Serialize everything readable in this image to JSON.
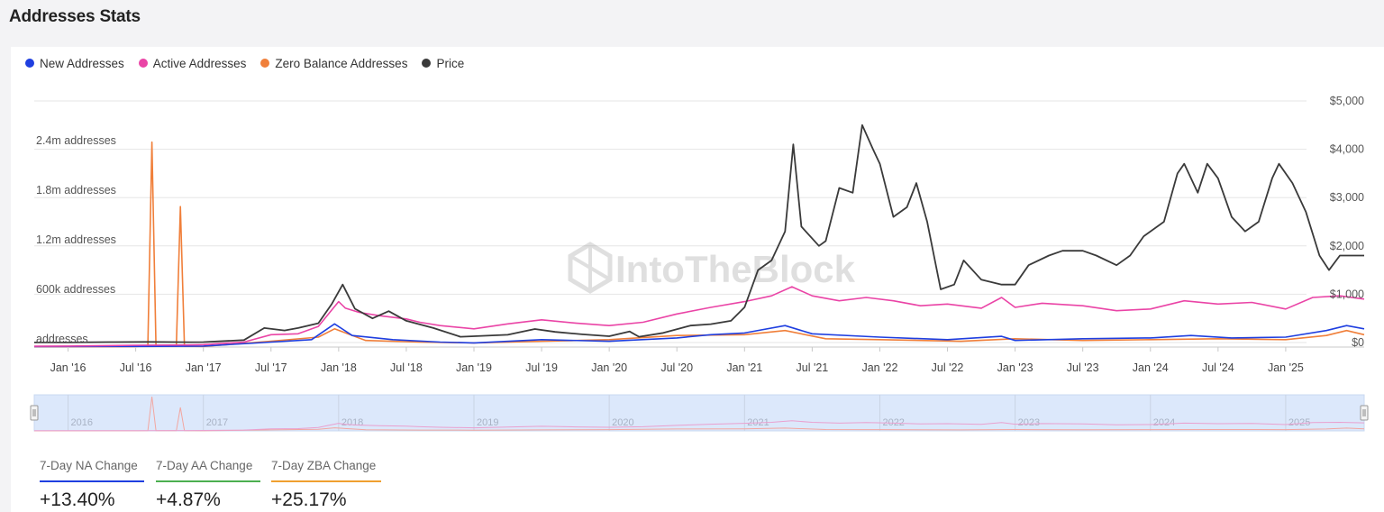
{
  "title": "Addresses Stats",
  "legend": [
    {
      "label": "New Addresses",
      "color": "#1f3fe0"
    },
    {
      "label": "Active Addresses",
      "color": "#ea44a6"
    },
    {
      "label": "Zero Balance Addresses",
      "color": "#f07f3a"
    },
    {
      "label": "Price",
      "color": "#3a3a3a"
    }
  ],
  "watermark": "IntoTheBlock",
  "kpis": [
    {
      "label": "7-Day NA Change",
      "value": "+13.40%",
      "color": "#1f3fe0"
    },
    {
      "label": "7-Day AA Change",
      "value": "+4.87%",
      "color": "#4caf50"
    },
    {
      "label": "7-Day ZBA Change",
      "value": "+25.17%",
      "color": "#f0a030"
    }
  ],
  "chart_data": {
    "type": "line",
    "x_ticks": [
      "Jan '16",
      "Jul '16",
      "Jan '17",
      "Jul '17",
      "Jan '18",
      "Jul '18",
      "Jan '19",
      "Jul '19",
      "Jan '20",
      "Jul '20",
      "Jan '21",
      "Jul '21",
      "Jan '22",
      "Jul '22",
      "Jan '23",
      "Jul '23",
      "Jan '24",
      "Jul '24",
      "Jan '25"
    ],
    "y_left": {
      "ticks": [
        "addresses",
        "600k addresses",
        "1.2m addresses",
        "1.8m addresses",
        "2.4m addresses"
      ],
      "tick_values": [
        0,
        600000,
        1200000,
        1800000,
        2400000
      ]
    },
    "y_right": {
      "ticks": [
        "$0",
        "$1,000",
        "$2,000",
        "$3,000",
        "$4,000",
        "$5,000"
      ],
      "tick_values": [
        0,
        1000,
        2000,
        3000,
        4000,
        5000
      ]
    },
    "x_range": [
      2015.75,
      2025.58
    ],
    "navigator_years": [
      "2016",
      "2017",
      "2018",
      "2019",
      "2020",
      "2021",
      "2022",
      "2023",
      "2024",
      "2025"
    ],
    "series": [
      {
        "name": "Active Addresses",
        "axis": "left",
        "color": "#ea44a6",
        "points": [
          [
            2015.75,
            10000
          ],
          [
            2016.0,
            12000
          ],
          [
            2016.5,
            22000
          ],
          [
            2016.9,
            25000
          ],
          [
            2017.0,
            30000
          ],
          [
            2017.3,
            60000
          ],
          [
            2017.5,
            150000
          ],
          [
            2017.7,
            160000
          ],
          [
            2017.85,
            250000
          ],
          [
            2017.95,
            450000
          ],
          [
            2018.0,
            550000
          ],
          [
            2018.05,
            470000
          ],
          [
            2018.15,
            420000
          ],
          [
            2018.3,
            380000
          ],
          [
            2018.5,
            340000
          ],
          [
            2018.6,
            300000
          ],
          [
            2018.75,
            260000
          ],
          [
            2019.0,
            220000
          ],
          [
            2019.25,
            280000
          ],
          [
            2019.5,
            330000
          ],
          [
            2019.75,
            290000
          ],
          [
            2020.0,
            260000
          ],
          [
            2020.25,
            300000
          ],
          [
            2020.5,
            400000
          ],
          [
            2020.75,
            480000
          ],
          [
            2021.0,
            550000
          ],
          [
            2021.2,
            620000
          ],
          [
            2021.35,
            730000
          ],
          [
            2021.5,
            620000
          ],
          [
            2021.7,
            560000
          ],
          [
            2021.9,
            600000
          ],
          [
            2022.1,
            560000
          ],
          [
            2022.3,
            500000
          ],
          [
            2022.5,
            520000
          ],
          [
            2022.75,
            470000
          ],
          [
            2022.9,
            600000
          ],
          [
            2023.0,
            480000
          ],
          [
            2023.2,
            530000
          ],
          [
            2023.5,
            500000
          ],
          [
            2023.75,
            440000
          ],
          [
            2024.0,
            460000
          ],
          [
            2024.25,
            560000
          ],
          [
            2024.5,
            520000
          ],
          [
            2024.75,
            540000
          ],
          [
            2025.0,
            460000
          ],
          [
            2025.2,
            600000
          ],
          [
            2025.4,
            620000
          ],
          [
            2025.58,
            580000
          ]
        ]
      },
      {
        "name": "New Addresses",
        "axis": "left",
        "color": "#1f3fe0",
        "points": [
          [
            2015.75,
            5000
          ],
          [
            2016.5,
            8000
          ],
          [
            2017.0,
            12000
          ],
          [
            2017.5,
            60000
          ],
          [
            2017.8,
            90000
          ],
          [
            2017.97,
            280000
          ],
          [
            2018.1,
            140000
          ],
          [
            2018.4,
            90000
          ],
          [
            2018.75,
            60000
          ],
          [
            2019.0,
            50000
          ],
          [
            2019.5,
            90000
          ],
          [
            2020.0,
            70000
          ],
          [
            2020.5,
            110000
          ],
          [
            2020.75,
            150000
          ],
          [
            2021.0,
            170000
          ],
          [
            2021.3,
            260000
          ],
          [
            2021.5,
            160000
          ],
          [
            2022.0,
            120000
          ],
          [
            2022.5,
            90000
          ],
          [
            2022.9,
            130000
          ],
          [
            2023.0,
            80000
          ],
          [
            2023.5,
            100000
          ],
          [
            2024.0,
            110000
          ],
          [
            2024.3,
            140000
          ],
          [
            2024.6,
            110000
          ],
          [
            2025.0,
            120000
          ],
          [
            2025.3,
            200000
          ],
          [
            2025.45,
            260000
          ],
          [
            2025.58,
            220000
          ]
        ]
      },
      {
        "name": "Zero Balance Addresses",
        "axis": "left",
        "color": "#f07f3a",
        "points": [
          [
            2015.75,
            3000
          ],
          [
            2016.5,
            5000
          ],
          [
            2016.59,
            15000
          ],
          [
            2016.62,
            2480000
          ],
          [
            2016.65,
            15000
          ],
          [
            2016.8,
            10000
          ],
          [
            2016.83,
            1700000
          ],
          [
            2016.86,
            10000
          ],
          [
            2017.0,
            8000
          ],
          [
            2017.5,
            70000
          ],
          [
            2017.85,
            120000
          ],
          [
            2017.97,
            220000
          ],
          [
            2018.2,
            80000
          ],
          [
            2018.6,
            60000
          ],
          [
            2019.0,
            50000
          ],
          [
            2019.5,
            70000
          ],
          [
            2020.0,
            90000
          ],
          [
            2020.5,
            140000
          ],
          [
            2021.0,
            150000
          ],
          [
            2021.3,
            200000
          ],
          [
            2021.6,
            100000
          ],
          [
            2022.0,
            90000
          ],
          [
            2022.6,
            70000
          ],
          [
            2023.0,
            100000
          ],
          [
            2023.5,
            80000
          ],
          [
            2024.0,
            90000
          ],
          [
            2024.5,
            100000
          ],
          [
            2025.0,
            90000
          ],
          [
            2025.3,
            140000
          ],
          [
            2025.45,
            200000
          ],
          [
            2025.58,
            150000
          ]
        ]
      },
      {
        "name": "Price",
        "axis": "right",
        "color": "#3a3a3a",
        "points": [
          [
            2015.75,
            1
          ],
          [
            2016.0,
            1
          ],
          [
            2016.3,
            10
          ],
          [
            2016.6,
            13
          ],
          [
            2016.9,
            8
          ],
          [
            2017.0,
            10
          ],
          [
            2017.3,
            50
          ],
          [
            2017.45,
            300
          ],
          [
            2017.6,
            250
          ],
          [
            2017.7,
            300
          ],
          [
            2017.85,
            400
          ],
          [
            2017.95,
            800
          ],
          [
            2018.03,
            1200
          ],
          [
            2018.12,
            700
          ],
          [
            2018.25,
            500
          ],
          [
            2018.37,
            650
          ],
          [
            2018.5,
            450
          ],
          [
            2018.7,
            300
          ],
          [
            2018.9,
            120
          ],
          [
            2019.0,
            130
          ],
          [
            2019.25,
            160
          ],
          [
            2019.45,
            280
          ],
          [
            2019.6,
            220
          ],
          [
            2019.8,
            170
          ],
          [
            2020.0,
            130
          ],
          [
            2020.15,
            230
          ],
          [
            2020.22,
            120
          ],
          [
            2020.4,
            200
          ],
          [
            2020.6,
            350
          ],
          [
            2020.75,
            380
          ],
          [
            2020.9,
            450
          ],
          [
            2021.0,
            730
          ],
          [
            2021.1,
            1500
          ],
          [
            2021.2,
            1700
          ],
          [
            2021.3,
            2300
          ],
          [
            2021.36,
            4100
          ],
          [
            2021.42,
            2400
          ],
          [
            2021.55,
            2000
          ],
          [
            2021.6,
            2100
          ],
          [
            2021.7,
            3200
          ],
          [
            2021.8,
            3100
          ],
          [
            2021.87,
            4500
          ],
          [
            2021.95,
            4000
          ],
          [
            2022.0,
            3700
          ],
          [
            2022.1,
            2600
          ],
          [
            2022.2,
            2800
          ],
          [
            2022.27,
            3300
          ],
          [
            2022.35,
            2500
          ],
          [
            2022.45,
            1100
          ],
          [
            2022.55,
            1200
          ],
          [
            2022.62,
            1700
          ],
          [
            2022.75,
            1300
          ],
          [
            2022.9,
            1200
          ],
          [
            2023.0,
            1200
          ],
          [
            2023.1,
            1600
          ],
          [
            2023.25,
            1800
          ],
          [
            2023.35,
            1900
          ],
          [
            2023.5,
            1900
          ],
          [
            2023.6,
            1800
          ],
          [
            2023.75,
            1600
          ],
          [
            2023.85,
            1800
          ],
          [
            2023.95,
            2200
          ],
          [
            2024.1,
            2500
          ],
          [
            2024.2,
            3500
          ],
          [
            2024.25,
            3700
          ],
          [
            2024.35,
            3100
          ],
          [
            2024.42,
            3700
          ],
          [
            2024.5,
            3400
          ],
          [
            2024.6,
            2600
          ],
          [
            2024.7,
            2300
          ],
          [
            2024.8,
            2500
          ],
          [
            2024.9,
            3400
          ],
          [
            2024.95,
            3700
          ],
          [
            2025.05,
            3300
          ],
          [
            2025.15,
            2700
          ],
          [
            2025.25,
            1800
          ],
          [
            2025.32,
            1500
          ],
          [
            2025.4,
            1800
          ],
          [
            2025.58,
            1800
          ]
        ]
      }
    ]
  }
}
